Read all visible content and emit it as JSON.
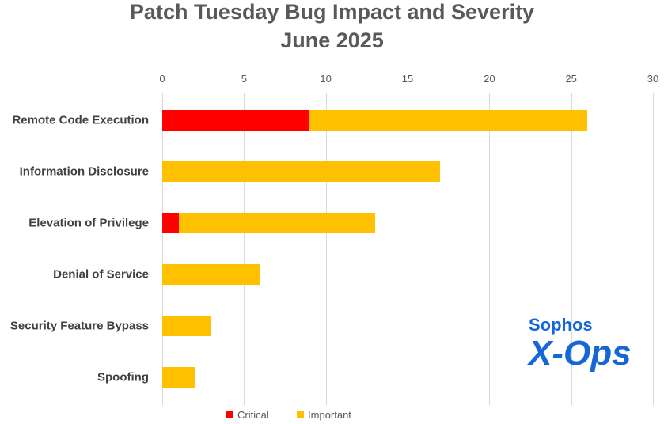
{
  "title_line1": "Patch Tuesday Bug Impact and Severity",
  "title_line2": "June 2025",
  "chart_data": {
    "type": "bar",
    "orientation": "horizontal",
    "stacked": true,
    "title": "Patch Tuesday Bug Impact and Severity June 2025",
    "categories": [
      "Remote Code Execution",
      "Information Disclosure",
      "Elevation of Privilege",
      "Denial of Service",
      "Security Feature Bypass",
      "Spoofing"
    ],
    "series": [
      {
        "name": "Critical",
        "color": "#ff0000",
        "values": [
          9,
          0,
          1,
          0,
          0,
          0
        ]
      },
      {
        "name": "Important",
        "color": "#ffc000",
        "values": [
          17,
          17,
          12,
          6,
          3,
          2
        ]
      }
    ],
    "xlim": [
      0,
      30
    ],
    "xticks": [
      0,
      5,
      10,
      15,
      20,
      25,
      30
    ],
    "grid": true,
    "legend_position": "bottom"
  },
  "legend": {
    "critical": "Critical",
    "important": "Important"
  },
  "logo": {
    "top": "Sophos",
    "bottom": "X-Ops"
  }
}
